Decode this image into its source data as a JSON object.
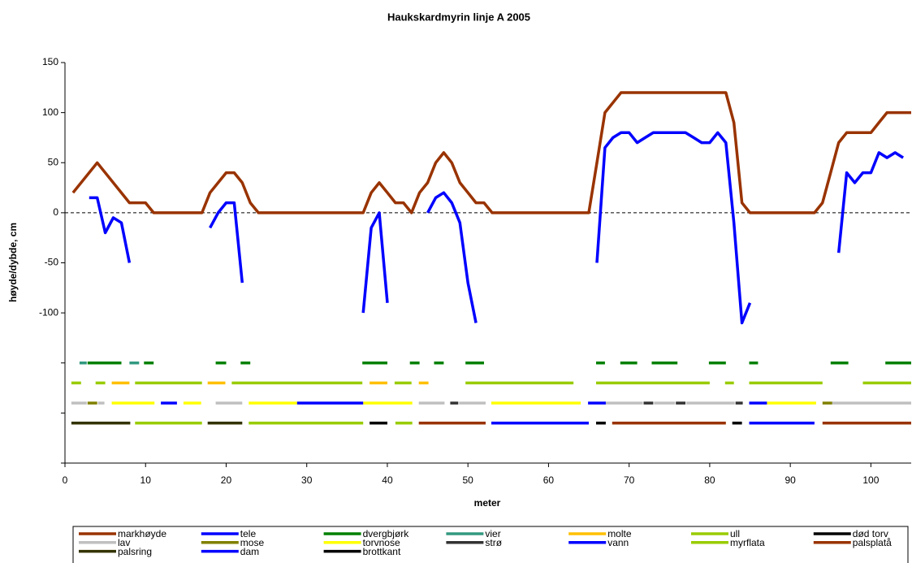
{
  "chart_data": {
    "type": "line",
    "title": "Haukskardmyrin linje A 2005",
    "x_label": "meter",
    "y_label": "høyde/dybde, cm",
    "xlim": [
      0,
      105
    ],
    "xticks": [
      0,
      10,
      20,
      30,
      40,
      50,
      60,
      70,
      80,
      90,
      100
    ],
    "ylim": [
      -250,
      150
    ],
    "yticks": [
      150,
      100,
      50,
      0,
      -50,
      -100,
      {
        "value": -150,
        "label": null
      },
      {
        "value": -200,
        "label": null
      },
      {
        "value": -250,
        "label": null
      }
    ],
    "grid": false,
    "series": [
      {
        "name": "markhøyde",
        "color": "#993300",
        "x": [
          1,
          4,
          8,
          10,
          11,
          17,
          18,
          20,
          21,
          22,
          23,
          24,
          37,
          38,
          39,
          40,
          41,
          42,
          43,
          44,
          45,
          46,
          47,
          48,
          49,
          50,
          51,
          52,
          53,
          65,
          66,
          67,
          68,
          69,
          82,
          83,
          84,
          85,
          93,
          94,
          95,
          96,
          97,
          100,
          101,
          102,
          105
        ],
        "values": [
          20,
          50,
          10,
          10,
          0,
          0,
          20,
          40,
          40,
          30,
          10,
          0,
          0,
          20,
          30,
          20,
          10,
          10,
          0,
          20,
          30,
          50,
          60,
          50,
          30,
          20,
          10,
          10,
          0,
          0,
          50,
          100,
          110,
          120,
          120,
          90,
          10,
          0,
          0,
          10,
          40,
          70,
          80,
          80,
          90,
          100,
          100
        ]
      },
      {
        "name": "tele",
        "color": "#0000ff",
        "x": [
          3,
          4,
          5,
          6,
          7,
          8,
          null,
          18,
          19,
          20,
          21,
          22,
          null,
          37,
          38,
          39,
          40,
          null,
          45,
          46,
          47,
          48,
          49,
          50,
          51,
          null,
          66,
          67,
          68,
          69,
          70,
          71,
          72,
          73,
          77,
          78,
          79,
          80,
          81,
          82,
          83,
          84,
          85,
          null,
          96,
          97,
          98,
          99,
          100,
          101,
          102,
          103,
          104
        ],
        "values": [
          15,
          15,
          -20,
          -5,
          -10,
          -50,
          null,
          -15,
          0,
          10,
          10,
          -70,
          null,
          -100,
          -15,
          0,
          -90,
          null,
          0,
          15,
          20,
          10,
          -10,
          -70,
          -110,
          null,
          -50,
          65,
          75,
          80,
          80,
          70,
          75,
          80,
          80,
          75,
          70,
          70,
          80,
          70,
          -10,
          -110,
          -90,
          null,
          -40,
          40,
          30,
          40,
          40,
          60,
          55,
          60,
          55
        ]
      },
      {
        "name": "dvergbjørk",
        "color": "#008000",
        "x": [
          2.8,
          7,
          null,
          9.8,
          11,
          null,
          18.7,
          20,
          null,
          21.8,
          23,
          null,
          36.9,
          40,
          null,
          42.8,
          44,
          null,
          45.8,
          47,
          null,
          49.7,
          52,
          null,
          65.9,
          67,
          null,
          68.9,
          71,
          null,
          72.8,
          76,
          null,
          79.9,
          82,
          null,
          84.9,
          86,
          null,
          95,
          97.2,
          null,
          101.8,
          105
        ],
        "values": [
          -150,
          -150,
          null,
          -150,
          -150,
          null,
          -150,
          -150,
          null,
          -150,
          -150,
          null,
          -150,
          -150,
          null,
          -150,
          -150,
          null,
          -150,
          -150,
          null,
          -150,
          -150,
          null,
          -150,
          -150,
          null,
          -150,
          -150,
          null,
          -150,
          -150,
          null,
          -150,
          -150,
          null,
          -150,
          -150,
          null,
          -150,
          -150,
          null,
          -150,
          -150
        ]
      },
      {
        "name": "vier",
        "color": "#339980",
        "x": [
          1.8,
          2.7,
          null,
          8,
          9.2
        ],
        "values": [
          -150,
          -150,
          null,
          -150,
          -150
        ]
      },
      {
        "name": "molte",
        "color": "#ffc000",
        "x": [
          5.8,
          8,
          null,
          17.7,
          19.9,
          null,
          37.8,
          40,
          null,
          43.9,
          45.1
        ],
        "values": [
          -170,
          -170,
          null,
          -170,
          -170,
          null,
          -170,
          -170,
          null,
          -170,
          -170
        ]
      },
      {
        "name": "ull",
        "color": "#99cc00",
        "x": [
          0.8,
          2,
          null,
          3.8,
          5,
          null,
          8.7,
          17,
          null,
          20.7,
          36.9,
          null,
          40.9,
          43,
          null,
          49.7,
          63.1,
          null,
          65.9,
          80,
          null,
          81.9,
          83,
          null,
          84.9,
          94,
          null,
          99,
          105
        ],
        "values": [
          -170,
          -170,
          null,
          -170,
          -170,
          null,
          -170,
          -170,
          null,
          -170,
          -170,
          null,
          -170,
          -170,
          null,
          -170,
          -170,
          null,
          -170,
          -170,
          null,
          -170,
          -170,
          null,
          -170,
          -170,
          null,
          -170,
          -170
        ]
      },
      {
        "name": "død torv",
        "color": "#000000",
        "x": [
          37.8,
          40
        ],
        "values": [
          -210,
          -210
        ]
      },
      {
        "name": "lav",
        "color": "#c0c0c0",
        "x": [
          0.8,
          2.7,
          null,
          4.1,
          4.9,
          null,
          18.7,
          22,
          null,
          43.9,
          47.1,
          null,
          48.9,
          52.2,
          null,
          67,
          71.7,
          null,
          73.1,
          75.7,
          null,
          77.1,
          83.1,
          null,
          95.2,
          105
        ],
        "values": [
          -190,
          -190,
          null,
          -190,
          -190,
          null,
          -190,
          -190,
          null,
          -190,
          -190,
          null,
          -190,
          -190,
          null,
          -190,
          -190,
          null,
          -190,
          -190,
          null,
          -190,
          -190,
          null,
          -190,
          -190
        ]
      },
      {
        "name": "mose",
        "color": "#808000",
        "x": [
          2.8,
          4,
          null,
          94,
          95.2
        ],
        "values": [
          -190,
          -190,
          null,
          -190,
          -190
        ]
      },
      {
        "name": "torvnose",
        "color": "#ffff00",
        "x": [
          5.8,
          11.1,
          null,
          14.7,
          16.9,
          null,
          22.8,
          28.8,
          null,
          37,
          43.1,
          null,
          52.9,
          64,
          null,
          87.1,
          93.2
        ],
        "values": [
          -190,
          -190,
          null,
          -190,
          -190,
          null,
          -190,
          -190,
          null,
          -190,
          -190,
          null,
          -190,
          -190,
          null,
          -190,
          -190
        ]
      },
      {
        "name": "strø",
        "color": "#333333",
        "x": [
          47.8,
          48.8,
          null,
          71.8,
          73,
          null,
          75.8,
          77,
          null,
          83.2,
          84.1
        ],
        "values": [
          -190,
          -190,
          null,
          -190,
          -190,
          null,
          -190,
          -190,
          null,
          -190,
          -190
        ]
      },
      {
        "name": "vann",
        "color": "#0000ff",
        "x": [
          11.9,
          13.9,
          null,
          28.8,
          37,
          null,
          64.9,
          67.1,
          null,
          84.9,
          87.1
        ],
        "values": [
          -190,
          -190,
          null,
          -190,
          -190,
          null,
          -190,
          -190,
          null,
          -190,
          -190
        ]
      },
      {
        "name": "myrflata",
        "color": "#99cc00",
        "x": [
          8.7,
          17,
          null,
          22.8,
          37,
          null,
          41,
          43.1
        ],
        "values": [
          -210,
          -210,
          null,
          -210,
          -210,
          null,
          -210,
          -210
        ]
      },
      {
        "name": "palsplatå",
        "color": "#993300",
        "x": [
          43.9,
          52.2,
          null,
          67.9,
          82,
          null,
          94,
          105
        ],
        "values": [
          -210,
          -210,
          null,
          -210,
          -210,
          null,
          -210,
          -210
        ]
      },
      {
        "name": "palsring",
        "color": "#333300",
        "x": [
          0.8,
          8.1,
          null,
          17.7,
          22
        ],
        "values": [
          -210,
          -210,
          null,
          -210,
          -210
        ]
      },
      {
        "name": "dam",
        "color": "#0000ff",
        "x": [
          52.9,
          65,
          null,
          84.9,
          93
        ],
        "values": [
          -210,
          -210,
          null,
          -210,
          -210
        ]
      },
      {
        "name": "brottkant",
        "color": "#000000",
        "x": [
          65.9,
          67.1,
          null,
          82.8,
          84
        ],
        "values": [
          -210,
          -210,
          null,
          -210,
          -210
        ]
      }
    ]
  }
}
